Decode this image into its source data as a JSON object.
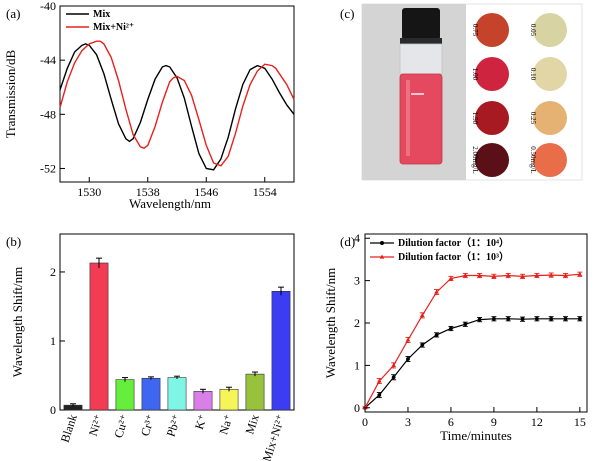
{
  "chart_data": [
    {
      "panel_label": "(a)",
      "type": "line",
      "xlabel": "Wavelength/nm",
      "ylabel": "Transmission/dB",
      "xlim": [
        1526,
        1558
      ],
      "ylim": [
        -53,
        -40
      ],
      "xticks": [
        1530,
        1538,
        1546,
        1554
      ],
      "yticks": [
        -40,
        -44,
        -48,
        -52
      ],
      "legend_position": "top-left",
      "series": [
        {
          "name": "Mix",
          "color": "#000000",
          "x": [
            1526,
            1527,
            1528,
            1529,
            1529.5,
            1530,
            1531,
            1532,
            1533,
            1534,
            1535,
            1535.5,
            1536,
            1537,
            1538,
            1539,
            1540,
            1540.5,
            1541,
            1542,
            1543,
            1544,
            1545,
            1546,
            1547,
            1548,
            1548.5,
            1549,
            1550,
            1551,
            1552,
            1553,
            1554,
            1555,
            1556,
            1557,
            1558
          ],
          "y": [
            -46.2,
            -44.6,
            -43.4,
            -42.9,
            -42.8,
            -42.9,
            -43.6,
            -45.0,
            -46.9,
            -48.7,
            -49.8,
            -50.0,
            -49.8,
            -48.6,
            -46.9,
            -45.4,
            -44.5,
            -44.4,
            -44.5,
            -45.3,
            -46.8,
            -48.9,
            -50.9,
            -52.0,
            -52.1,
            -51.3,
            -50.5,
            -49.7,
            -47.6,
            -45.8,
            -44.7,
            -44.4,
            -44.6,
            -45.4,
            -46.4,
            -47.3,
            -48.0
          ]
        },
        {
          "name": "Mix+Ni²⁺",
          "color": "#e8201c",
          "x": [
            1526,
            1527,
            1528,
            1529,
            1530,
            1531,
            1531.5,
            1532,
            1533,
            1534,
            1535,
            1536,
            1537,
            1537.5,
            1538,
            1539,
            1540,
            1541,
            1541.5,
            1542,
            1543,
            1544,
            1545,
            1546,
            1547,
            1548,
            1549,
            1550,
            1551,
            1552,
            1553,
            1554,
            1555,
            1555.5,
            1556,
            1557,
            1558
          ],
          "y": [
            -47.5,
            -45.6,
            -44.2,
            -43.3,
            -42.8,
            -42.6,
            -42.6,
            -42.8,
            -43.8,
            -45.5,
            -47.6,
            -49.5,
            -50.4,
            -50.5,
            -50.3,
            -48.9,
            -47.1,
            -45.6,
            -45.3,
            -45.2,
            -45.5,
            -46.6,
            -48.4,
            -50.3,
            -51.6,
            -51.8,
            -51.1,
            -49.4,
            -47.4,
            -45.8,
            -44.8,
            -44.3,
            -44.4,
            -44.6,
            -45.0,
            -45.8,
            -46.9
          ]
        }
      ]
    },
    {
      "panel_label": "(b)",
      "type": "bar",
      "ylabel": "Wavelength Shift/nm",
      "ylim": [
        0,
        2.55
      ],
      "yticks": [
        0,
        1,
        2
      ],
      "categories": [
        "Blank",
        "Ni²⁺",
        "Cu²⁺",
        "Cr³⁺",
        "Pb²⁺",
        "K⁺",
        "Na⁺",
        "Mix",
        "Mix+Ni²⁺"
      ],
      "values": [
        0.07,
        2.13,
        0.44,
        0.46,
        0.47,
        0.27,
        0.3,
        0.52,
        1.72
      ],
      "errors": [
        0.02,
        0.07,
        0.03,
        0.02,
        0.02,
        0.03,
        0.03,
        0.03,
        0.06
      ],
      "colors": [
        "#222222",
        "#f23c56",
        "#66ee3c",
        "#3f66f0",
        "#7ff5e6",
        "#d97fe8",
        "#f5f55a",
        "#99c23c",
        "#3c3cf2"
      ]
    },
    {
      "panel_label": "(c)",
      "type": "image",
      "chips": [
        {
          "label": "0.75",
          "color": "#c4432a"
        },
        {
          "label": "0.05",
          "color": "#d8d3a2"
        },
        {
          "label": "1.00",
          "color": "#cf2440"
        },
        {
          "label": "0.10",
          "color": "#e2d6a6"
        },
        {
          "label": "1.50",
          "color": "#a71a22"
        },
        {
          "label": "0.25",
          "color": "#e6b273"
        },
        {
          "label": "2.00mg/L",
          "color": "#5a1016"
        },
        {
          "label": "0.50mg/L",
          "color": "#ea6d4a"
        }
      ]
    },
    {
      "panel_label": "(d)",
      "type": "line",
      "xlabel": "Time/minutes",
      "ylabel": "Wavelength Shift/nm",
      "xlim": [
        0,
        15.5
      ],
      "ylim": [
        -0.1,
        4.1
      ],
      "xticks": [
        0,
        3,
        6,
        9,
        12,
        15
      ],
      "yticks": [
        0,
        1,
        2,
        3,
        4
      ],
      "legend_position": "top-left",
      "series": [
        {
          "name": "Dilution factor（1：10⁴）",
          "color": "#000000",
          "x": [
            0,
            1,
            2,
            3,
            4,
            5,
            6,
            7,
            8,
            9,
            10,
            11,
            12,
            13,
            14,
            15
          ],
          "y": [
            0,
            0.3,
            0.72,
            1.15,
            1.48,
            1.72,
            1.87,
            1.97,
            2.08,
            2.1,
            2.1,
            2.09,
            2.1,
            2.1,
            2.1,
            2.1
          ],
          "errors": [
            0.02,
            0.06,
            0.06,
            0.06,
            0.05,
            0.05,
            0.05,
            0.05,
            0.05,
            0.05,
            0.05,
            0.05,
            0.05,
            0.05,
            0.05,
            0.05
          ]
        },
        {
          "name": "Dilution factor（1：10³）",
          "color": "#e8201c",
          "x": [
            0,
            1,
            2,
            3,
            4,
            5,
            6,
            7,
            8,
            9,
            10,
            11,
            12,
            13,
            14,
            15
          ],
          "y": [
            0,
            0.63,
            1.0,
            1.6,
            2.18,
            2.73,
            3.05,
            3.12,
            3.12,
            3.1,
            3.12,
            3.1,
            3.12,
            3.13,
            3.12,
            3.15
          ],
          "errors": [
            0.02,
            0.06,
            0.06,
            0.06,
            0.06,
            0.06,
            0.05,
            0.05,
            0.05,
            0.05,
            0.05,
            0.05,
            0.05,
            0.05,
            0.05,
            0.05
          ]
        }
      ]
    }
  ]
}
